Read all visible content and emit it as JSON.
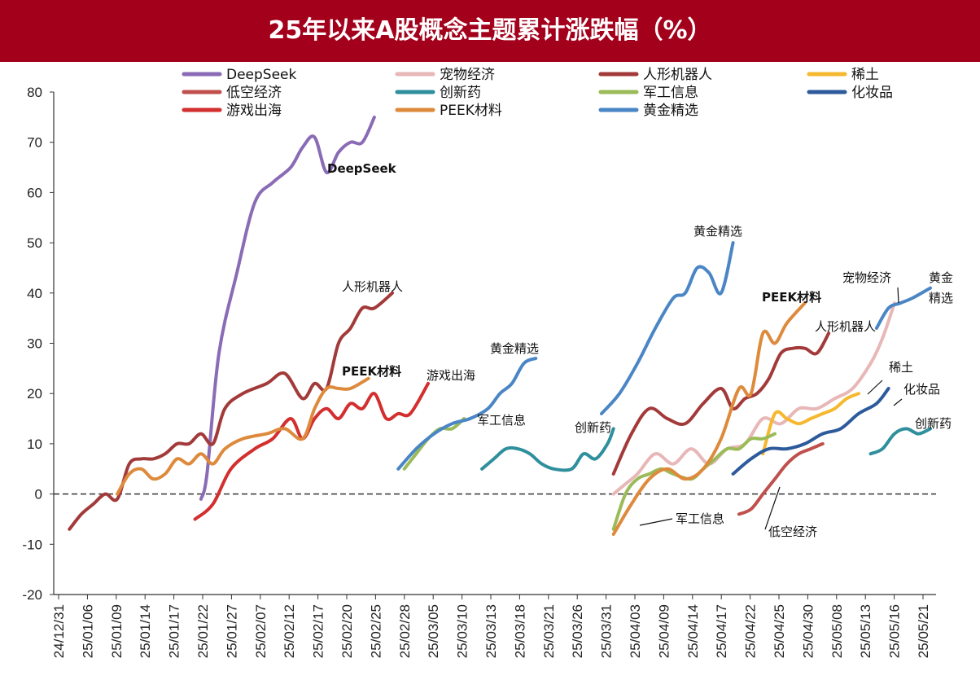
{
  "title": "25年以来A股概念主题累计涨跌幅（%）",
  "colors": {
    "header": "#a3001b"
  },
  "chart_data": {
    "type": "line",
    "title": "25年以来A股概念主题累计涨跌幅（%）",
    "xlabel": "",
    "ylabel": "",
    "ylim": [
      -20,
      80
    ],
    "yticks": [
      "80",
      "70",
      "60",
      "50",
      "40",
      "30",
      "20",
      "10",
      "0",
      "-10",
      "-20"
    ],
    "x_range": [
      "24/12/31",
      "25/05/25"
    ],
    "x_ticks": [
      "24/12/31",
      "25/01/06",
      "25/01/09",
      "25/01/14",
      "25/01/17",
      "25/01/22",
      "25/01/27",
      "25/02/07",
      "25/02/12",
      "25/02/17",
      "25/02/20",
      "25/02/25",
      "25/02/28",
      "25/03/05",
      "25/03/10",
      "25/03/13",
      "25/03/18",
      "25/03/21",
      "25/03/26",
      "25/03/31",
      "25/04/03",
      "25/04/09",
      "25/04/14",
      "25/04/17",
      "25/04/22",
      "25/04/25",
      "25/04/30",
      "25/05/08",
      "25/05/13",
      "25/05/16",
      "25/05/21"
    ],
    "legend_position": "top",
    "series": [
      {
        "name": "DeepSeek",
        "color": "#8a6bb5",
        "segments": [
          [
            [
              "25/01/23",
              -1
            ],
            [
              "25/01/24",
              4
            ],
            [
              "25/01/26",
              28
            ],
            [
              "25/01/29",
              44
            ],
            [
              "25/02/01",
              58
            ],
            [
              "25/02/04",
              62
            ],
            [
              "25/02/07",
              65
            ],
            [
              "25/02/09",
              69
            ],
            [
              "25/02/11",
              71
            ],
            [
              "25/02/13",
              64
            ],
            [
              "25/02/15",
              68
            ],
            [
              "25/02/17",
              70
            ],
            [
              "25/02/19",
              70
            ],
            [
              "25/02/21",
              75
            ]
          ]
        ]
      },
      {
        "name": "宠物经济",
        "color": "#e8b7b7",
        "segments": [
          [
            [
              "25/04/02",
              0
            ],
            [
              "25/04/04",
              2
            ],
            [
              "25/04/06",
              4
            ],
            [
              "25/04/09",
              8
            ],
            [
              "25/04/12",
              6
            ],
            [
              "25/04/15",
              9
            ],
            [
              "25/04/18",
              6
            ],
            [
              "25/04/21",
              9
            ],
            [
              "25/04/24",
              10
            ],
            [
              "25/04/27",
              15
            ],
            [
              "25/04/30",
              14
            ],
            [
              "25/05/03",
              17
            ],
            [
              "25/05/06",
              17
            ],
            [
              "25/05/09",
              19
            ],
            [
              "25/05/12",
              21
            ],
            [
              "25/05/15",
              26
            ],
            [
              "25/05/17",
              31
            ],
            [
              "25/05/19",
              38
            ]
          ]
        ]
      },
      {
        "name": "人形机器人",
        "color": "#a33a3a",
        "segments": [
          [
            [
              "25/01/01",
              -7
            ],
            [
              "25/01/03",
              -4
            ],
            [
              "25/01/05",
              -2
            ],
            [
              "25/01/07",
              0
            ],
            [
              "25/01/09",
              -1
            ],
            [
              "25/01/11",
              6
            ],
            [
              "25/01/13",
              7
            ],
            [
              "25/01/15",
              7
            ],
            [
              "25/01/17",
              8
            ],
            [
              "25/01/19",
              10
            ],
            [
              "25/01/21",
              10
            ],
            [
              "25/01/23",
              12
            ],
            [
              "25/01/25",
              10
            ],
            [
              "25/01/27",
              17
            ],
            [
              "25/01/30",
              20
            ],
            [
              "25/02/03",
              22
            ],
            [
              "25/02/06",
              24
            ],
            [
              "25/02/09",
              19
            ],
            [
              "25/02/11",
              22
            ],
            [
              "25/02/13",
              21
            ],
            [
              "25/02/15",
              30
            ],
            [
              "25/02/17",
              33
            ],
            [
              "25/02/19",
              37
            ],
            [
              "25/02/21",
              37
            ],
            [
              "25/02/24",
              40
            ]
          ],
          [
            [
              "25/04/02",
              4
            ],
            [
              "25/04/05",
              12
            ],
            [
              "25/04/08",
              17
            ],
            [
              "25/04/11",
              15
            ],
            [
              "25/04/14",
              14
            ],
            [
              "25/04/17",
              18
            ],
            [
              "25/04/20",
              21
            ],
            [
              "25/04/22",
              17
            ],
            [
              "25/04/24",
              19
            ],
            [
              "25/04/26",
              20
            ],
            [
              "25/04/28",
              23
            ],
            [
              "25/04/30",
              28
            ],
            [
              "25/05/02",
              29
            ],
            [
              "25/05/04",
              29
            ],
            [
              "25/05/06",
              28
            ],
            [
              "25/05/08",
              32
            ]
          ]
        ]
      },
      {
        "name": "稀土",
        "color": "#f5b82e",
        "segments": [
          [
            [
              "25/04/27",
              8
            ],
            [
              "25/04/29",
              16
            ],
            [
              "25/05/01",
              15
            ],
            [
              "25/05/03",
              14
            ],
            [
              "25/05/05",
              15
            ],
            [
              "25/05/07",
              16
            ],
            [
              "25/05/09",
              17
            ],
            [
              "25/05/11",
              19
            ],
            [
              "25/05/13",
              20
            ]
          ]
        ]
      },
      {
        "name": "低空经济",
        "color": "#c0504d",
        "segments": [
          [
            [
              "25/04/23",
              -4
            ],
            [
              "25/04/25",
              -3
            ],
            [
              "25/04/27",
              0
            ],
            [
              "25/04/29",
              3
            ],
            [
              "25/05/01",
              6
            ],
            [
              "25/05/03",
              8
            ],
            [
              "25/05/05",
              9
            ],
            [
              "25/05/07",
              10
            ]
          ]
        ]
      },
      {
        "name": "创新药",
        "color": "#2f8f9d",
        "segments": [
          [
            [
              "25/03/11",
              5
            ],
            [
              "25/03/13",
              7
            ],
            [
              "25/03/15",
              9
            ],
            [
              "25/03/17",
              9
            ],
            [
              "25/03/19",
              8
            ],
            [
              "25/03/21",
              6
            ],
            [
              "25/03/23",
              5
            ],
            [
              "25/03/26",
              5
            ],
            [
              "25/03/28",
              8
            ],
            [
              "25/03/30",
              7
            ],
            [
              "25/04/01",
              10
            ],
            [
              "25/04/02",
              13
            ]
          ],
          [
            [
              "25/05/15",
              8
            ],
            [
              "25/05/17",
              9
            ],
            [
              "25/05/19",
              12
            ],
            [
              "25/05/21",
              13
            ],
            [
              "25/05/23",
              12
            ],
            [
              "25/05/25",
              13
            ]
          ]
        ]
      },
      {
        "name": "军工信息",
        "color": "#9bbb59",
        "segments": [
          [
            [
              "25/02/26",
              5
            ],
            [
              "25/02/28",
              8
            ],
            [
              "25/03/02",
              11
            ],
            [
              "25/03/04",
              13
            ],
            [
              "25/03/06",
              13
            ],
            [
              "25/03/08",
              15
            ]
          ],
          [
            [
              "25/04/02",
              -7
            ],
            [
              "25/04/04",
              0
            ],
            [
              "25/04/06",
              3
            ],
            [
              "25/04/08",
              4
            ],
            [
              "25/04/10",
              5
            ],
            [
              "25/04/12",
              4
            ],
            [
              "25/04/15",
              3
            ],
            [
              "25/04/17",
              5
            ],
            [
              "25/04/19",
              7
            ],
            [
              "25/04/21",
              9
            ],
            [
              "25/04/23",
              9
            ],
            [
              "25/04/25",
              11
            ],
            [
              "25/04/27",
              11
            ],
            [
              "25/04/29",
              12
            ]
          ]
        ]
      },
      {
        "name": "化妆品",
        "color": "#2d5a9b",
        "segments": [
          [
            [
              "25/04/22",
              4
            ],
            [
              "25/04/25",
              7
            ],
            [
              "25/04/28",
              9
            ],
            [
              "25/05/01",
              9
            ],
            [
              "25/05/04",
              10
            ],
            [
              "25/05/07",
              12
            ],
            [
              "25/05/10",
              13
            ],
            [
              "25/05/13",
              16
            ],
            [
              "25/05/16",
              18
            ],
            [
              "25/05/18",
              21
            ]
          ]
        ]
      },
      {
        "name": "游戏出海",
        "color": "#d32f2f",
        "segments": [
          [
            [
              "25/01/22",
              -5
            ],
            [
              "25/01/25",
              -2
            ],
            [
              "25/01/28",
              5
            ],
            [
              "25/02/01",
              9
            ],
            [
              "25/02/04",
              11
            ],
            [
              "25/02/07",
              15
            ],
            [
              "25/02/09",
              11
            ],
            [
              "25/02/11",
              15
            ],
            [
              "25/02/13",
              17
            ],
            [
              "25/02/15",
              15
            ],
            [
              "25/02/17",
              18
            ],
            [
              "25/02/19",
              17
            ],
            [
              "25/02/21",
              20
            ],
            [
              "25/02/23",
              15
            ],
            [
              "25/02/25",
              16
            ],
            [
              "25/02/27",
              16
            ],
            [
              "25/03/02",
              22
            ]
          ]
        ]
      },
      {
        "name": "PEEK材料",
        "color": "#de8a3c",
        "segments": [
          [
            [
              "25/01/09",
              0
            ],
            [
              "25/01/11",
              4
            ],
            [
              "25/01/13",
              5
            ],
            [
              "25/01/15",
              3
            ],
            [
              "25/01/17",
              4
            ],
            [
              "25/01/19",
              7
            ],
            [
              "25/01/21",
              6
            ],
            [
              "25/01/23",
              8
            ],
            [
              "25/01/25",
              6
            ],
            [
              "25/01/27",
              9
            ],
            [
              "25/01/30",
              11
            ],
            [
              "25/02/03",
              12
            ],
            [
              "25/02/06",
              13
            ],
            [
              "25/02/09",
              11
            ],
            [
              "25/02/11",
              17
            ],
            [
              "25/02/13",
              21
            ],
            [
              "25/02/15",
              21
            ],
            [
              "25/02/17",
              21
            ],
            [
              "25/02/20",
              23
            ]
          ],
          [
            [
              "25/04/02",
              -8
            ],
            [
              "25/04/05",
              -2
            ],
            [
              "25/04/08",
              3
            ],
            [
              "25/04/11",
              5
            ],
            [
              "25/04/14",
              3
            ],
            [
              "25/04/17",
              5
            ],
            [
              "25/04/20",
              11
            ],
            [
              "25/04/23",
              21
            ],
            [
              "25/04/25",
              20
            ],
            [
              "25/04/27",
              32
            ],
            [
              "25/04/29",
              30
            ],
            [
              "25/05/01",
              34
            ],
            [
              "25/05/04",
              38
            ]
          ]
        ]
      },
      {
        "name": "黄金精选",
        "color": "#4a86c5",
        "segments": [
          [
            [
              "25/02/25",
              5
            ],
            [
              "25/02/28",
              9
            ],
            [
              "25/03/03",
              12
            ],
            [
              "25/03/06",
              14
            ],
            [
              "25/03/09",
              15
            ],
            [
              "25/03/12",
              17
            ],
            [
              "25/03/14",
              20
            ],
            [
              "25/03/16",
              22
            ],
            [
              "25/03/18",
              26
            ],
            [
              "25/03/20",
              27
            ]
          ],
          [
            [
              "25/03/31",
              16
            ],
            [
              "25/04/03",
              20
            ],
            [
              "25/04/06",
              26
            ],
            [
              "25/04/09",
              33
            ],
            [
              "25/04/12",
              39
            ],
            [
              "25/04/14",
              40
            ],
            [
              "25/04/16",
              45
            ],
            [
              "25/04/18",
              44
            ],
            [
              "25/04/20",
              40
            ],
            [
              "25/04/22",
              50
            ]
          ],
          [
            [
              "25/05/16",
              33
            ],
            [
              "25/05/18",
              37
            ],
            [
              "25/05/20",
              38
            ],
            [
              "25/05/22",
              39
            ],
            [
              "25/05/25",
              41
            ]
          ]
        ]
      }
    ],
    "annotations": [
      {
        "text": "DeepSeek",
        "style": "bold"
      },
      {
        "text": "人形机器人"
      },
      {
        "text": "PEEK材料",
        "style": "bold"
      },
      {
        "text": "游戏出海"
      },
      {
        "text": "黄金精选"
      },
      {
        "text": "军工信息"
      },
      {
        "text": "创新药"
      },
      {
        "text": "黄金精选"
      },
      {
        "text": "PEEK材料",
        "style": "bold"
      },
      {
        "text": "宠物经济"
      },
      {
        "text": "黄金"
      },
      {
        "text": "精选"
      },
      {
        "text": "人形机器人"
      },
      {
        "text": "稀土"
      },
      {
        "text": "化妆品"
      },
      {
        "text": "创新药"
      },
      {
        "text": "军工信息"
      },
      {
        "text": "低空经济"
      }
    ]
  }
}
